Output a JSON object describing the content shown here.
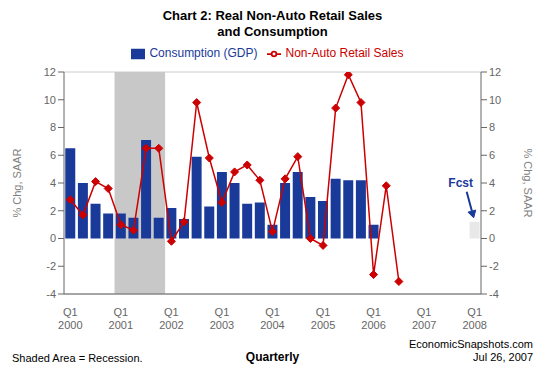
{
  "chart_data": {
    "type": "bar",
    "title": "Chart 2: Real Non-Auto Retail Sales\nand Consumption",
    "xlabel": "Quarterly",
    "ylabel": "% Chg, SAAR",
    "y2label": "% Chg, SAAR",
    "categories": [
      "Q1\n2000",
      null,
      null,
      null,
      "Q1\n2001",
      null,
      null,
      null,
      "Q1\n2002",
      null,
      null,
      null,
      "Q1\n2003",
      null,
      null,
      null,
      "Q1\n2004",
      null,
      null,
      null,
      "Q1\n2005",
      null,
      null,
      null,
      "Q1\n2006",
      null,
      null,
      null,
      "Q1\n2007",
      null,
      null,
      null,
      "Q1\n2008"
    ],
    "series": [
      {
        "name": "Consumption (GDP)",
        "type": "bar",
        "color": "#1a3a9a",
        "colors": [
          "#1a3a9a",
          "#1a3a9a",
          "#1a3a9a",
          "#1a3a9a",
          "#1a3a9a",
          "#1a3a9a",
          "#1a3a9a",
          "#1a3a9a",
          "#1a3a9a",
          "#1a3a9a",
          "#1a3a9a",
          "#1a3a9a",
          "#1a3a9a",
          "#1a3a9a",
          "#1a3a9a",
          "#1a3a9a",
          "#1a3a9a",
          "#1a3a9a",
          "#1a3a9a",
          "#1a3a9a",
          "#1a3a9a",
          "#1a3a9a",
          "#1a3a9a",
          "#1a3a9a",
          "#1a3a9a",
          "#1a3a9a",
          "#1a3a9a",
          "#1a3a9a",
          "#1a3a9a",
          "#1a3a9a",
          "#1a3a9a",
          "#1a3a9a",
          "#e8e8e8"
        ],
        "values": [
          6.5,
          4.0,
          2.5,
          1.8,
          1.8,
          1.5,
          7.1,
          1.5,
          2.2,
          1.4,
          5.9,
          2.3,
          4.8,
          4.0,
          2.5,
          2.6,
          1.0,
          4.0,
          4.8,
          3.0,
          2.7,
          4.3,
          4.2,
          4.2,
          1.0,
          null,
          null,
          null,
          null,
          null,
          null,
          null,
          1.2
        ]
      },
      {
        "name": "Non-Auto Retail Sales",
        "type": "line",
        "color": "#cc0000",
        "marker": "diamond",
        "values": [
          2.8,
          1.7,
          4.1,
          3.6,
          1.0,
          0.6,
          6.5,
          6.5,
          -0.2,
          1.2,
          9.8,
          5.8,
          2.6,
          4.8,
          5.3,
          4.2,
          0.5,
          4.3,
          5.9,
          0.0,
          -0.5,
          9.4,
          11.8,
          9.8,
          -2.6,
          3.8,
          -3.1,
          null,
          null,
          null,
          null,
          null,
          null
        ]
      }
    ],
    "ylim": [
      -4,
      12
    ],
    "yticks": [
      -4,
      -2,
      0,
      2,
      4,
      6,
      8,
      10,
      12
    ],
    "y2lim": [
      -4,
      12
    ],
    "y2ticks": [
      -4,
      -2,
      0,
      2,
      4,
      6,
      8,
      10,
      12
    ],
    "grid": true,
    "shaded": {
      "from": 4,
      "to": 7,
      "color": "#c8c8c8"
    },
    "annotations": [
      {
        "text": "Fcst",
        "x": 32,
        "y": 1.2,
        "color": "#1a3a9a"
      }
    ],
    "note": "Shaded Area = Recession.",
    "source": "EconomicSnapshots.com\nJul 26, 2007"
  }
}
